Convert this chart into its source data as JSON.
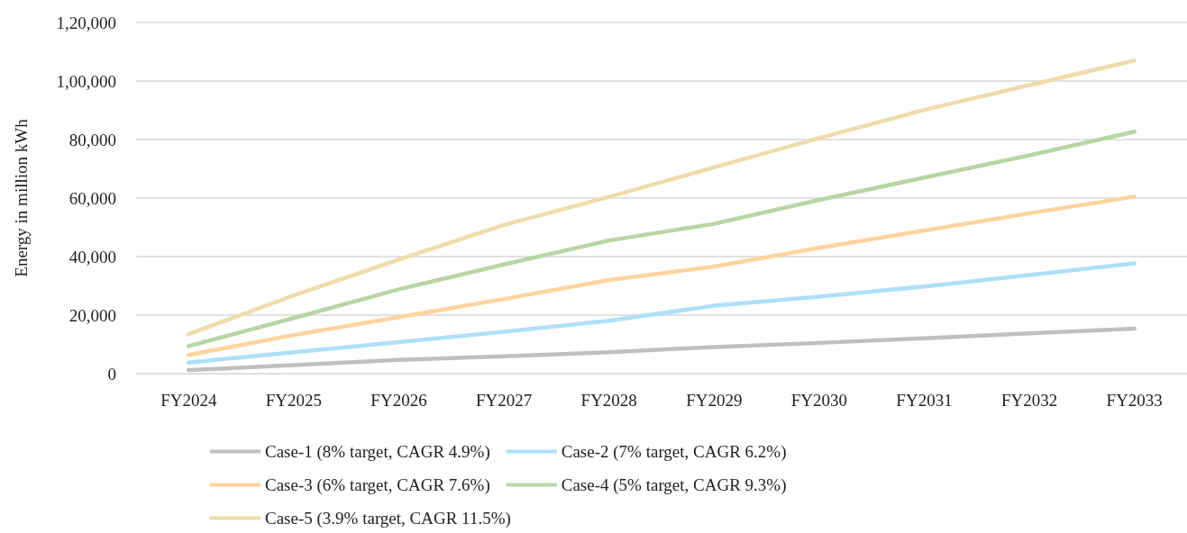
{
  "chart_data": {
    "type": "line",
    "ylabel": "Energy in million kWh",
    "categories": [
      "FY2024",
      "FY2025",
      "FY2026",
      "FY2027",
      "FY2028",
      "FY2029",
      "FY2030",
      "FY2031",
      "FY2032",
      "FY2033"
    ],
    "ylim": [
      0,
      120000
    ],
    "yticks": [
      0,
      {
        "value": 20000,
        "label": "20,000"
      },
      {
        "value": 40000,
        "label": "40,000"
      },
      {
        "value": 60000,
        "label": "60,000"
      },
      {
        "value": 80000,
        "label": "80,000"
      },
      {
        "value": 100000,
        "label": "1,00,000"
      },
      {
        "value": 120000,
        "label": "1,20,000"
      }
    ],
    "grid": "y",
    "legend": "bottom",
    "marker": "none",
    "line_style": "solid",
    "series": [
      {
        "name": "Case-1 (8% target, CAGR 4.9%)",
        "color": "#bfbfbf",
        "values": [
          1200,
          2900,
          4700,
          5900,
          7300,
          9100,
          10500,
          12100,
          13800,
          15400
        ]
      },
      {
        "name": "Case-2 (7% target, CAGR 6.2%)",
        "color": "#ade0f9",
        "values": [
          3800,
          7300,
          10800,
          14300,
          18100,
          23200,
          26300,
          29800,
          33700,
          37700
        ]
      },
      {
        "name": "Case-3 (6% target, CAGR 7.6%)",
        "color": "#ffd49c",
        "values": [
          6400,
          13200,
          19300,
          25500,
          32000,
          36600,
          43000,
          48900,
          54800,
          60500
        ]
      },
      {
        "name": "Case-4 (5% target, CAGR 9.3%)",
        "color": "#b6d6a4",
        "values": [
          9400,
          19000,
          28800,
          37300,
          45500,
          51200,
          59400,
          67000,
          74600,
          82700
        ]
      },
      {
        "name": "Case-5 (3.9% target, CAGR 11.5%)",
        "color": "#eedcaa",
        "values": [
          13500,
          26700,
          39000,
          50800,
          60400,
          70500,
          80500,
          90100,
          98600,
          107000
        ]
      }
    ]
  }
}
